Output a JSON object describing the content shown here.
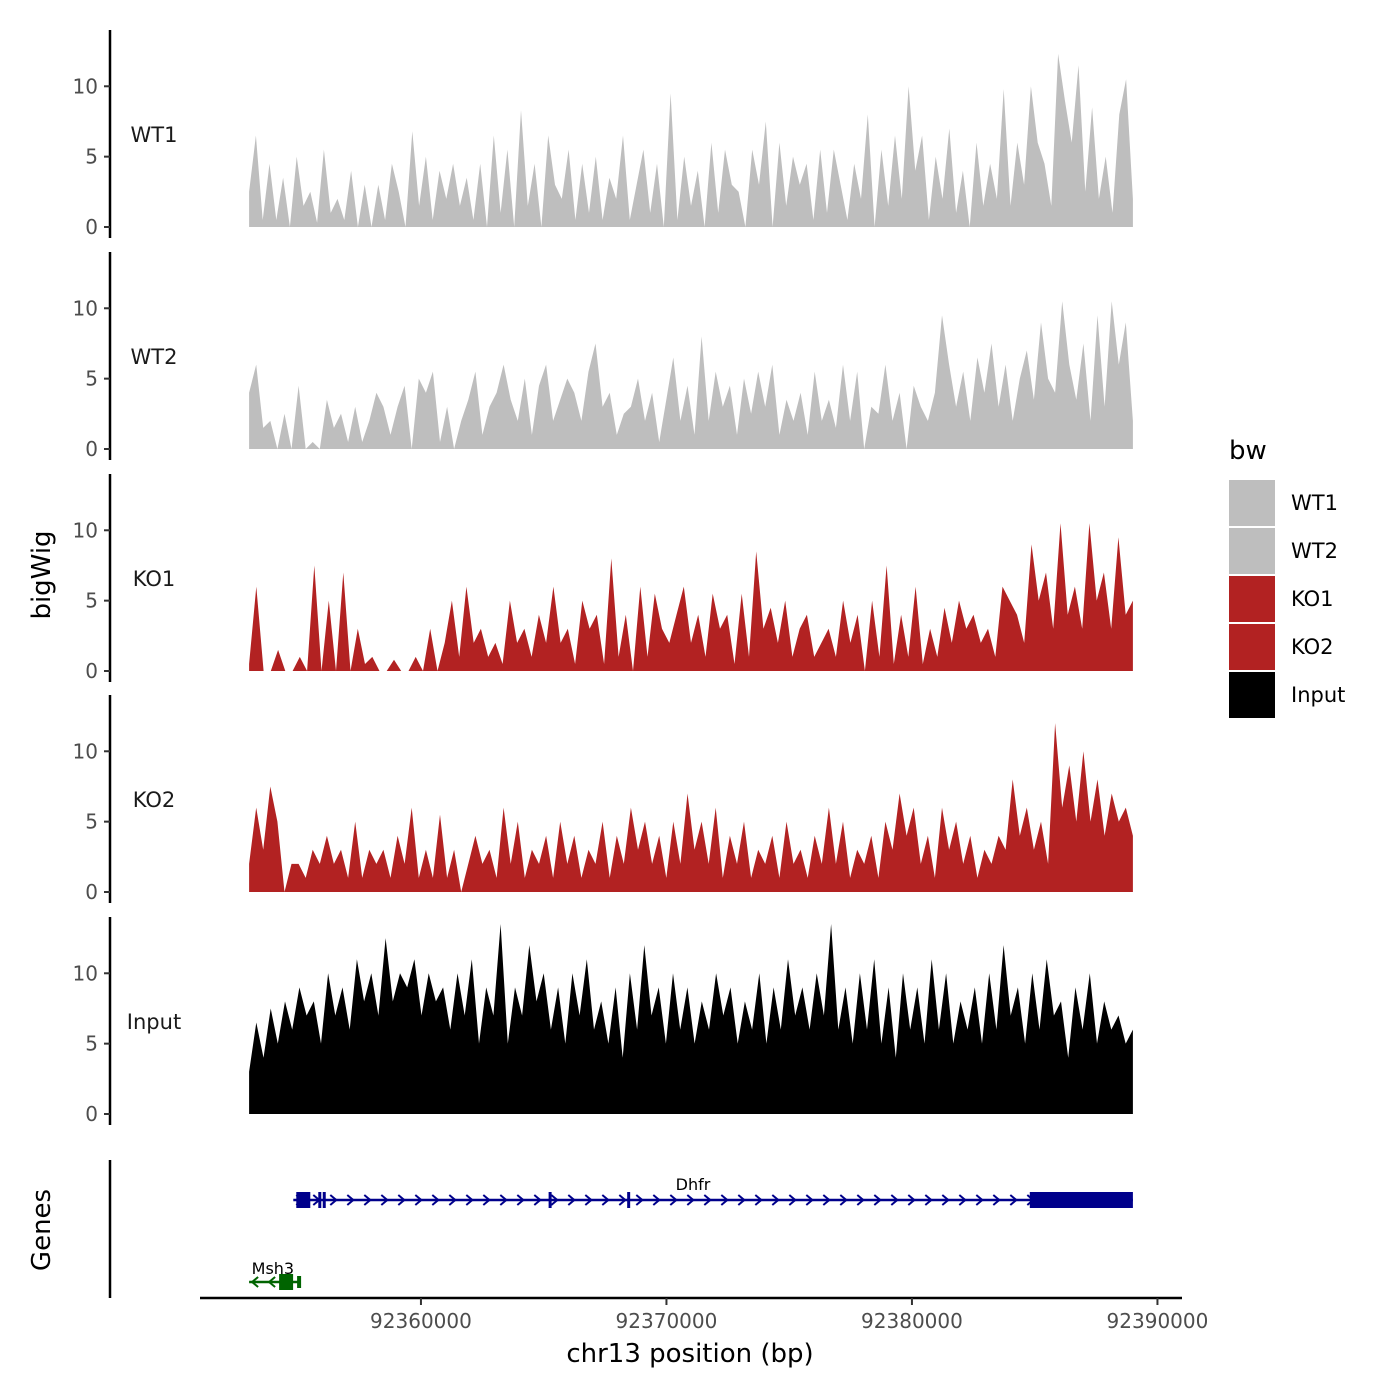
{
  "chart_data": {
    "type": "area",
    "y_axis_title": "bigWig",
    "x_axis_title": "chr13 position (bp)",
    "genes_track_title": "Genes",
    "xlim": [
      92351000,
      92391000
    ],
    "data_x_range": [
      92353000,
      92389000
    ],
    "ylim": [
      0,
      14
    ],
    "y_ticks": [
      0,
      5,
      10
    ],
    "x_ticks": [
      92360000,
      92370000,
      92380000,
      92390000
    ],
    "x_tick_labels": [
      "92360000",
      "92370000",
      "92380000",
      "92390000"
    ],
    "legend": {
      "title": "bw",
      "entries": [
        {
          "label": "WT1",
          "color": "#bebebe"
        },
        {
          "label": "WT2",
          "color": "#bebebe"
        },
        {
          "label": "KO1",
          "color": "#b22222"
        },
        {
          "label": "KO2",
          "color": "#b22222"
        },
        {
          "label": "Input",
          "color": "#000000"
        }
      ]
    },
    "tracks": [
      {
        "name": "WT1",
        "color": "#bebebe",
        "values": [
          2.5,
          6.5,
          0.5,
          4.5,
          0.5,
          3.5,
          0,
          5,
          1.5,
          2.5,
          0.3,
          5.5,
          1,
          2,
          0.5,
          4,
          0,
          3,
          0,
          3,
          0.5,
          4.5,
          2.5,
          0,
          6.8,
          1.5,
          5,
          0.5,
          4,
          2,
          4.5,
          1.5,
          3.5,
          0.5,
          4.5,
          0,
          6.5,
          1,
          5.5,
          0,
          8.3,
          1.5,
          4.5,
          0,
          6.5,
          3,
          2,
          5.5,
          0.5,
          4.5,
          1,
          5,
          0.5,
          3.5,
          2,
          6.5,
          0.5,
          3,
          5.5,
          1,
          4.5,
          0,
          9.5,
          0.5,
          5,
          1.5,
          4,
          0,
          6,
          1,
          5.5,
          3,
          2.5,
          0,
          5.5,
          3,
          7.5,
          0,
          6,
          1.5,
          5,
          3,
          4.5,
          0.5,
          5.5,
          1,
          5.5,
          3,
          0.5,
          4.5,
          2,
          8,
          0,
          5.5,
          1.5,
          6.5,
          2,
          10,
          4,
          6.5,
          0.5,
          5,
          2,
          7,
          1,
          4,
          0,
          6,
          1.5,
          4.5,
          2,
          9.8,
          1.5,
          6,
          3,
          10,
          6,
          4.5,
          1.5,
          12.3,
          9,
          6,
          11.5,
          2.5,
          8.5,
          2,
          5,
          1,
          8,
          10.5,
          2
        ]
      },
      {
        "name": "WT2",
        "color": "#bebebe",
        "values": [
          4,
          6,
          1.5,
          2,
          0,
          2.5,
          0,
          4.5,
          0,
          0.5,
          0,
          3.5,
          1.5,
          2.5,
          0.5,
          3,
          0.5,
          2,
          4,
          3,
          1,
          3,
          4.5,
          0,
          5,
          4,
          5.5,
          0.5,
          3,
          0,
          2,
          3.5,
          5.5,
          1,
          3,
          4,
          6,
          3.5,
          2,
          5,
          1,
          4.5,
          6,
          2,
          3.5,
          5,
          4,
          2,
          5.5,
          7.5,
          3,
          4,
          1,
          2.5,
          3,
          5,
          2,
          4,
          0.5,
          3.5,
          6.5,
          2,
          4.5,
          1,
          8,
          2,
          5.5,
          3,
          4.5,
          1,
          5,
          2.5,
          5.5,
          3,
          6,
          1,
          3.5,
          2,
          4,
          1,
          5.5,
          2,
          3.5,
          1.5,
          6,
          2,
          5.5,
          0,
          3,
          2.5,
          6,
          2,
          4,
          0,
          4.5,
          3,
          2,
          4,
          9.5,
          6,
          3,
          5.5,
          2,
          6.5,
          4,
          7.5,
          3,
          6,
          2,
          5,
          7,
          3.5,
          9,
          5,
          4,
          10.5,
          6,
          3.5,
          7.5,
          2,
          9.5,
          3,
          10.5,
          6,
          9,
          2
        ]
      },
      {
        "name": "KO1",
        "color": "#b22222",
        "values": [
          0.5,
          6,
          0,
          0,
          1.5,
          0,
          0,
          1,
          0,
          7.5,
          0,
          5,
          0,
          7,
          0,
          3,
          0.5,
          1,
          0,
          0,
          0.8,
          0,
          0,
          1,
          0,
          3,
          0,
          2,
          5,
          1,
          6,
          2,
          3,
          1,
          2,
          0.5,
          5,
          2,
          3,
          1,
          4,
          2,
          6,
          2,
          3,
          0.5,
          5,
          3,
          4,
          0.5,
          8,
          1,
          4,
          0,
          6,
          1,
          5.5,
          3,
          2,
          4,
          6,
          2,
          4,
          1,
          5.5,
          3,
          4,
          0.5,
          5.5,
          1,
          8.5,
          3,
          4.5,
          2,
          5,
          1,
          3,
          4,
          1,
          2,
          3,
          1,
          5,
          2,
          4,
          0,
          5,
          1,
          7.5,
          0.5,
          4,
          1,
          6,
          0.5,
          3,
          1,
          4.5,
          2,
          5,
          3,
          4,
          2,
          3,
          1,
          6,
          5,
          4,
          2,
          9,
          5,
          7,
          3,
          10.5,
          4,
          6,
          3,
          10.5,
          5,
          7,
          3,
          9.5,
          4,
          5
        ]
      },
      {
        "name": "KO2",
        "color": "#b22222",
        "values": [
          2,
          6,
          3,
          7.5,
          5,
          0,
          2,
          2,
          1,
          3,
          2,
          4,
          2,
          3,
          1,
          5,
          1,
          3,
          2,
          3,
          1,
          4,
          2,
          6,
          1,
          3,
          1,
          5.5,
          1,
          3,
          0,
          2,
          4,
          2,
          3,
          1,
          6,
          2,
          5,
          1,
          3,
          2,
          4,
          1,
          5,
          2,
          4,
          1,
          3,
          2,
          5,
          1,
          4,
          2,
          6,
          3,
          5,
          2,
          4,
          1,
          5,
          2,
          7,
          3,
          5,
          2,
          6,
          1,
          4,
          2,
          5,
          1,
          3,
          2,
          4,
          1,
          5,
          2,
          3,
          1,
          4,
          2,
          6,
          2,
          5,
          1,
          3,
          2,
          4,
          1,
          5,
          3,
          7,
          4,
          6,
          2,
          4,
          1,
          6,
          3,
          5,
          2,
          4,
          1,
          3,
          2,
          4,
          3,
          8,
          4,
          6,
          3,
          5,
          2,
          12,
          6,
          9,
          5,
          10,
          5,
          8,
          4,
          7,
          5,
          6,
          4
        ]
      },
      {
        "name": "Input",
        "color": "#000000",
        "values": [
          3,
          6.5,
          4,
          7.5,
          5,
          8,
          6,
          9,
          7,
          8,
          5,
          10,
          7,
          9,
          6,
          11,
          8,
          10,
          7,
          12.5,
          8,
          10,
          9,
          11,
          7,
          10,
          8,
          9,
          6,
          10,
          7,
          11,
          5,
          9,
          7,
          13.5,
          5,
          9,
          7,
          12,
          8,
          10,
          6,
          9,
          5,
          10,
          7,
          11,
          6,
          8,
          5,
          9,
          4,
          10,
          6,
          12,
          7,
          9,
          5,
          10,
          6,
          9,
          5,
          8,
          6,
          10,
          7,
          9,
          5,
          8,
          6,
          10,
          5,
          9,
          6,
          11,
          7,
          9,
          6,
          10,
          7,
          13.5,
          6,
          9,
          5,
          10,
          6,
          11,
          5,
          9,
          4,
          10,
          6,
          9,
          5,
          11,
          6,
          10,
          5,
          8,
          6,
          9,
          5,
          10,
          6,
          12,
          7,
          9,
          5,
          10,
          6,
          11,
          7,
          8,
          4,
          9,
          6,
          10,
          5,
          8,
          6,
          7,
          5,
          6
        ]
      }
    ],
    "genes": [
      {
        "name": "Msh3",
        "strand": "-",
        "color": "#006400",
        "start": 92353000,
        "end": 92355100
      },
      {
        "name": "Dhfr",
        "strand": "+",
        "color": "#00008b",
        "start": 92354800,
        "end": 92389000
      }
    ]
  }
}
